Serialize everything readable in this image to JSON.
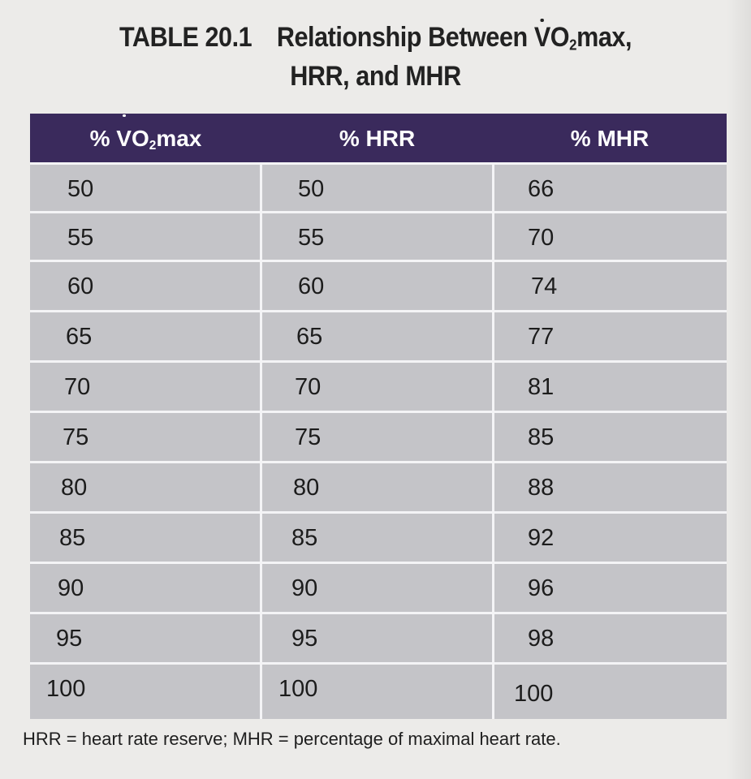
{
  "title": {
    "label": "TABLE 20.1",
    "line1_prefix": "Relationship Between ",
    "line1_v": "V",
    "line1_o": "O",
    "line1_sub": "2",
    "line1_suffix": "max,",
    "line2": "HRR, and MHR"
  },
  "columns": {
    "vo2_prefix": "% ",
    "vo2_v": "V",
    "vo2_o": "O",
    "vo2_sub": "2",
    "vo2_suffix": "max",
    "hrr": "% HRR",
    "mhr": "% MHR"
  },
  "rows": [
    {
      "vo2max": "50",
      "hrr": "50",
      "mhr": "66"
    },
    {
      "vo2max": "55",
      "hrr": "55",
      "mhr": "70"
    },
    {
      "vo2max": "60",
      "hrr": "60",
      "mhr": "74"
    },
    {
      "vo2max": "65",
      "hrr": "65",
      "mhr": "77"
    },
    {
      "vo2max": "70",
      "hrr": "70",
      "mhr": "81"
    },
    {
      "vo2max": "75",
      "hrr": "75",
      "mhr": "85"
    },
    {
      "vo2max": "80",
      "hrr": "80",
      "mhr": "88"
    },
    {
      "vo2max": "85",
      "hrr": "85",
      "mhr": "92"
    },
    {
      "vo2max": "90",
      "hrr": "90",
      "mhr": "96"
    },
    {
      "vo2max": "95",
      "hrr": "95",
      "mhr": "98"
    },
    {
      "vo2max": "100",
      "hrr": "100",
      "mhr": "100"
    }
  ],
  "footnote": "HRR = heart rate reserve; MHR = percentage of maximal heart rate.",
  "colors": {
    "header_bg": "#3a2a5c",
    "cell_bg": "#c4c4c8",
    "grid_lines": "#f4f4f6",
    "page_bg": "#ecebe9"
  }
}
